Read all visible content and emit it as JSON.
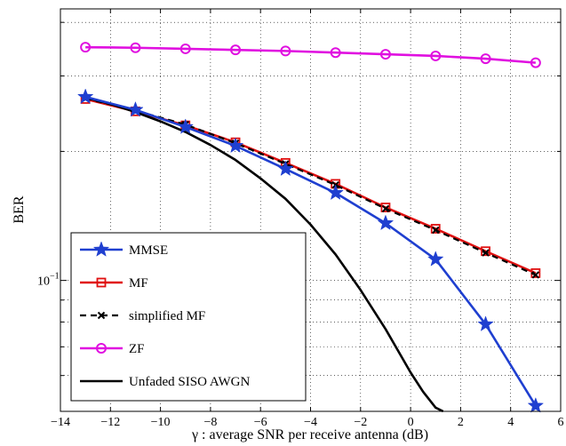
{
  "chart_data": {
    "type": "line",
    "xlabel": "γ : average SNR per receive antenna (dB)",
    "ylabel": "BER",
    "xlim": [
      -14,
      6
    ],
    "ylim": [
      0.0495,
      0.43
    ],
    "yscale": "log",
    "grid": true,
    "legend_position": "bottom-left",
    "x_ticks": [
      -14,
      -12,
      -10,
      -8,
      -6,
      -4,
      -2,
      0,
      2,
      4,
      6
    ],
    "x_tick_labels": [
      "−14",
      "−12",
      "−10",
      "−8",
      "−6",
      "−4",
      "−2",
      "0",
      "2",
      "4",
      "6"
    ],
    "y_tick_labels": [
      {
        "value": 0.1,
        "base": "10",
        "exp": "−1"
      }
    ],
    "series": [
      {
        "name": "MMSE",
        "color": "#1f3fd0",
        "marker": "star",
        "dash": "solid",
        "x": [
          -13,
          -11,
          -9,
          -7,
          -5,
          -3,
          -1,
          1,
          3,
          5
        ],
        "values": [
          0.268,
          0.25,
          0.228,
          0.206,
          0.182,
          0.16,
          0.136,
          0.112,
          0.079,
          0.051
        ]
      },
      {
        "name": "MF",
        "color": "#e01010",
        "marker": "square",
        "dash": "solid",
        "x": [
          -13,
          -11,
          -9,
          -7,
          -5,
          -3,
          -1,
          1,
          3,
          5
        ],
        "values": [
          0.265,
          0.248,
          0.23,
          0.21,
          0.188,
          0.168,
          0.148,
          0.132,
          0.117,
          0.104
        ]
      },
      {
        "name": "simplified MF",
        "color": "#000000",
        "marker": "x-dot",
        "dash": "dashed",
        "x": [
          -13,
          -11,
          -9,
          -7,
          -5,
          -3,
          -1,
          1,
          3,
          5
        ],
        "values": [
          0.266,
          0.249,
          0.231,
          0.209,
          0.187,
          0.167,
          0.147,
          0.131,
          0.116,
          0.103
        ]
      },
      {
        "name": "ZF",
        "color": "#e010e0",
        "marker": "circle",
        "dash": "solid",
        "x": [
          -13,
          -11,
          -9,
          -7,
          -5,
          -3,
          -1,
          1,
          3,
          5
        ],
        "values": [
          0.35,
          0.349,
          0.347,
          0.345,
          0.343,
          0.34,
          0.337,
          0.334,
          0.329,
          0.322
        ]
      },
      {
        "name": "Unfaded SISO AWGN",
        "color": "#000000",
        "marker": "none",
        "dash": "solid",
        "x": [
          -13,
          -12,
          -11,
          -10,
          -9,
          -8,
          -7,
          -6,
          -5,
          -4,
          -3,
          -2,
          -1,
          0,
          0.5,
          1,
          1.3
        ],
        "values": [
          0.267,
          0.258,
          0.247,
          0.235,
          0.222,
          0.207,
          0.191,
          0.173,
          0.155,
          0.135,
          0.115,
          0.095,
          0.077,
          0.061,
          0.055,
          0.0505,
          0.0495
        ]
      }
    ]
  }
}
